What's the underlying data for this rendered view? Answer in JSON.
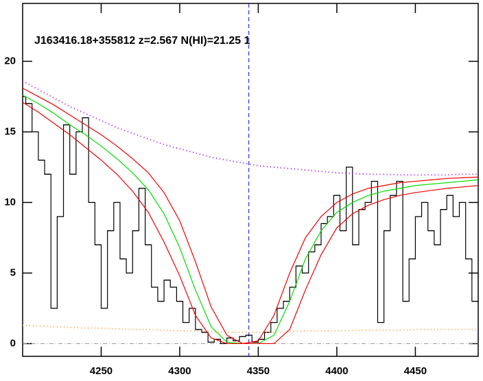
{
  "chart_data": {
    "type": "line",
    "title": "J163416.18+355812 z=2.567 N(HI)=21.25 1",
    "xlim": [
      4200,
      4490
    ],
    "ylim": [
      -0.9,
      24.1
    ],
    "xticks": [
      4250,
      4300,
      4350,
      4400,
      4450
    ],
    "yticks": [
      0,
      5,
      10,
      15,
      20
    ],
    "reference_x": 4344,
    "reference_x_color": "#0000ff",
    "reference_y": 0,
    "reference_y_color": "#999999",
    "series": [
      {
        "color": "#000000",
        "style": "step",
        "x": [
          4200,
          4204,
          4208,
          4212,
          4216,
          4220,
          4224,
          4228,
          4232,
          4236,
          4240,
          4244,
          4248,
          4252,
          4256,
          4260,
          4264,
          4268,
          4272,
          4276,
          4280,
          4284,
          4288,
          4292,
          4296,
          4300,
          4304,
          4308,
          4312,
          4316,
          4320,
          4324,
          4328,
          4332,
          4336,
          4340,
          4344,
          4348,
          4352,
          4356,
          4360,
          4364,
          4368,
          4372,
          4376,
          4380,
          4384,
          4388,
          4392,
          4396,
          4400,
          4404,
          4408,
          4412,
          4416,
          4420,
          4424,
          4428,
          4432,
          4436,
          4440,
          4444,
          4448,
          4452,
          4456,
          4460,
          4464,
          4468,
          4472,
          4476,
          4480,
          4484,
          4488
        ],
        "values": [
          17.5,
          17,
          15,
          13,
          12,
          2.5,
          9,
          15.5,
          12,
          15,
          16,
          10,
          7,
          2.5,
          8,
          10,
          6,
          5,
          8,
          11,
          7,
          4,
          3,
          4.5,
          4,
          3,
          1.5,
          2.5,
          1,
          0.8,
          0.1,
          0.3,
          0,
          0.4,
          0.2,
          0.5,
          0.6,
          0.1,
          0.3,
          0.8,
          1.5,
          2.5,
          3,
          4,
          5.5,
          5,
          6.5,
          7,
          8.5,
          9,
          10.5,
          8,
          12.5,
          7,
          9.5,
          10,
          11.5,
          1.5,
          8,
          10.5,
          11.5,
          3,
          6,
          9,
          10,
          8,
          7,
          9.5,
          10.5,
          9,
          10,
          6,
          3
        ]
      },
      {
        "color": "#9900ff",
        "style": "dotted",
        "x": [
          4200,
          4210,
          4220,
          4230,
          4240,
          4250,
          4260,
          4270,
          4280,
          4290,
          4300,
          4310,
          4320,
          4330,
          4340,
          4350,
          4360,
          4370,
          4380,
          4390,
          4400,
          4410,
          4420,
          4430,
          4440,
          4450,
          4460,
          4470,
          4480,
          4490
        ],
        "values": [
          18.6,
          18.0,
          17.4,
          16.8,
          16.3,
          15.8,
          15.3,
          14.9,
          14.5,
          14.1,
          13.8,
          13.5,
          13.2,
          13.0,
          12.8,
          12.6,
          12.5,
          12.4,
          12.3,
          12.2,
          12.1,
          12.05,
          12.0,
          12.0,
          11.95,
          11.95,
          11.95,
          11.95,
          12.0,
          12.0
        ]
      },
      {
        "color": "#ff9933",
        "style": "dotted",
        "x": [
          4200,
          4210,
          4220,
          4230,
          4240,
          4250,
          4260,
          4270,
          4280,
          4290,
          4300,
          4310,
          4320,
          4330,
          4340,
          4350,
          4360,
          4370,
          4380,
          4390,
          4400,
          4410,
          4420,
          4430,
          4440,
          4450,
          4460,
          4470,
          4480,
          4490
        ],
        "values": [
          1.3,
          1.25,
          1.2,
          1.15,
          1.1,
          1.1,
          1.05,
          1.0,
          1.0,
          0.95,
          0.9,
          0.9,
          0.85,
          0.8,
          0.8,
          0.8,
          0.8,
          0.85,
          0.9,
          0.9,
          0.9,
          0.95,
          0.95,
          0.95,
          0.95,
          1.0,
          1.0,
          1.0,
          1.0,
          1.0
        ]
      },
      {
        "color": "#00dd00",
        "style": "solid",
        "x": [
          4200,
          4210,
          4220,
          4230,
          4240,
          4250,
          4260,
          4270,
          4280,
          4290,
          4300,
          4310,
          4320,
          4330,
          4340,
          4350,
          4360,
          4370,
          4380,
          4390,
          4400,
          4410,
          4420,
          4430,
          4440,
          4450,
          4460,
          4470,
          4480,
          4490
        ],
        "values": [
          17.6,
          17.0,
          16.3,
          15.5,
          14.8,
          14.0,
          13.1,
          12.1,
          10.9,
          9.2,
          6.8,
          3.8,
          1.2,
          0.1,
          0,
          0,
          0.6,
          3,
          6,
          8,
          9.3,
          10.0,
          10.5,
          10.8,
          11.0,
          11.2,
          11.3,
          11.4,
          11.5,
          11.6
        ]
      },
      {
        "color": "#ee0000",
        "style": "solid",
        "x": [
          4200,
          4210,
          4220,
          4230,
          4240,
          4250,
          4260,
          4270,
          4280,
          4290,
          4300,
          4310,
          4320,
          4330,
          4340,
          4350,
          4360,
          4370,
          4380,
          4390,
          4400,
          4410,
          4420,
          4430,
          4440,
          4450,
          4460,
          4470,
          4480,
          4490
        ],
        "values": [
          18.1,
          17.5,
          16.9,
          16.2,
          15.5,
          14.8,
          14.0,
          13.1,
          12.1,
          10.7,
          8.7,
          5.8,
          2.6,
          0.6,
          0,
          0.2,
          2.0,
          5.0,
          7.5,
          9.0,
          10.0,
          10.6,
          11.0,
          11.2,
          11.4,
          11.5,
          11.6,
          11.7,
          11.75,
          11.8
        ]
      },
      {
        "color": "#ee0000",
        "style": "solid",
        "x": [
          4200,
          4210,
          4220,
          4230,
          4240,
          4250,
          4260,
          4270,
          4280,
          4290,
          4300,
          4310,
          4320,
          4330,
          4340,
          4350,
          4360,
          4370,
          4380,
          4390,
          4400,
          4410,
          4420,
          4430,
          4440,
          4450,
          4460,
          4470,
          4480,
          4490
        ],
        "values": [
          17.1,
          16.4,
          15.6,
          14.8,
          13.9,
          13.0,
          12.0,
          10.8,
          9.3,
          7.2,
          4.8,
          2.0,
          0.4,
          0,
          0,
          0,
          0,
          1.0,
          3.8,
          6.3,
          8.2,
          9.2,
          9.8,
          10.2,
          10.5,
          10.7,
          10.85,
          11.0,
          11.1,
          11.2
        ]
      }
    ]
  }
}
